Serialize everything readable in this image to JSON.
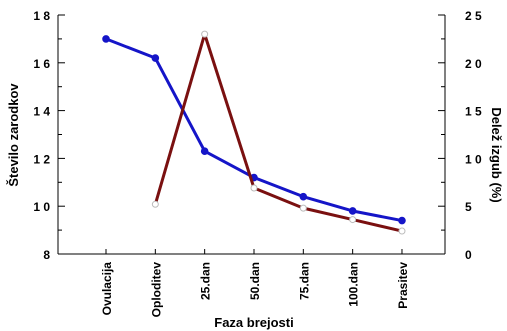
{
  "chart_data": {
    "type": "line",
    "xlabel": "Faza brejosti",
    "ylabel_left": "Število zarodkov",
    "ylabel_right": "Delež izgub (%)",
    "categories": [
      "Ovulacija",
      "Oploditev",
      "25.dan",
      "50.dan",
      "75.dan",
      "100.dan",
      "Prasitev"
    ],
    "ylim_left": [
      8,
      18
    ],
    "ylim_right": [
      0,
      25
    ],
    "yticks_left": [
      8,
      10,
      12,
      14,
      16,
      18
    ],
    "yticks_right": [
      0,
      5,
      10,
      15,
      20,
      25
    ],
    "yticklabels_left": [
      "8",
      "1 0",
      "1 2",
      "1 4",
      "1 6",
      "1 8"
    ],
    "yticklabels_right": [
      "0",
      "5",
      "1 0",
      "1 5",
      "2 0",
      "2 5"
    ],
    "series": [
      {
        "axis": "left",
        "color": "#1515c8",
        "marker": "filled-circle",
        "values": [
          17.0,
          16.2,
          12.3,
          11.2,
          10.4,
          9.8,
          9.4
        ]
      },
      {
        "axis": "right",
        "color": "#7a1010",
        "marker": "open-circle",
        "values": [
          null,
          5.2,
          23.0,
          6.9,
          4.8,
          3.6,
          2.4
        ]
      }
    ],
    "grid": false
  }
}
